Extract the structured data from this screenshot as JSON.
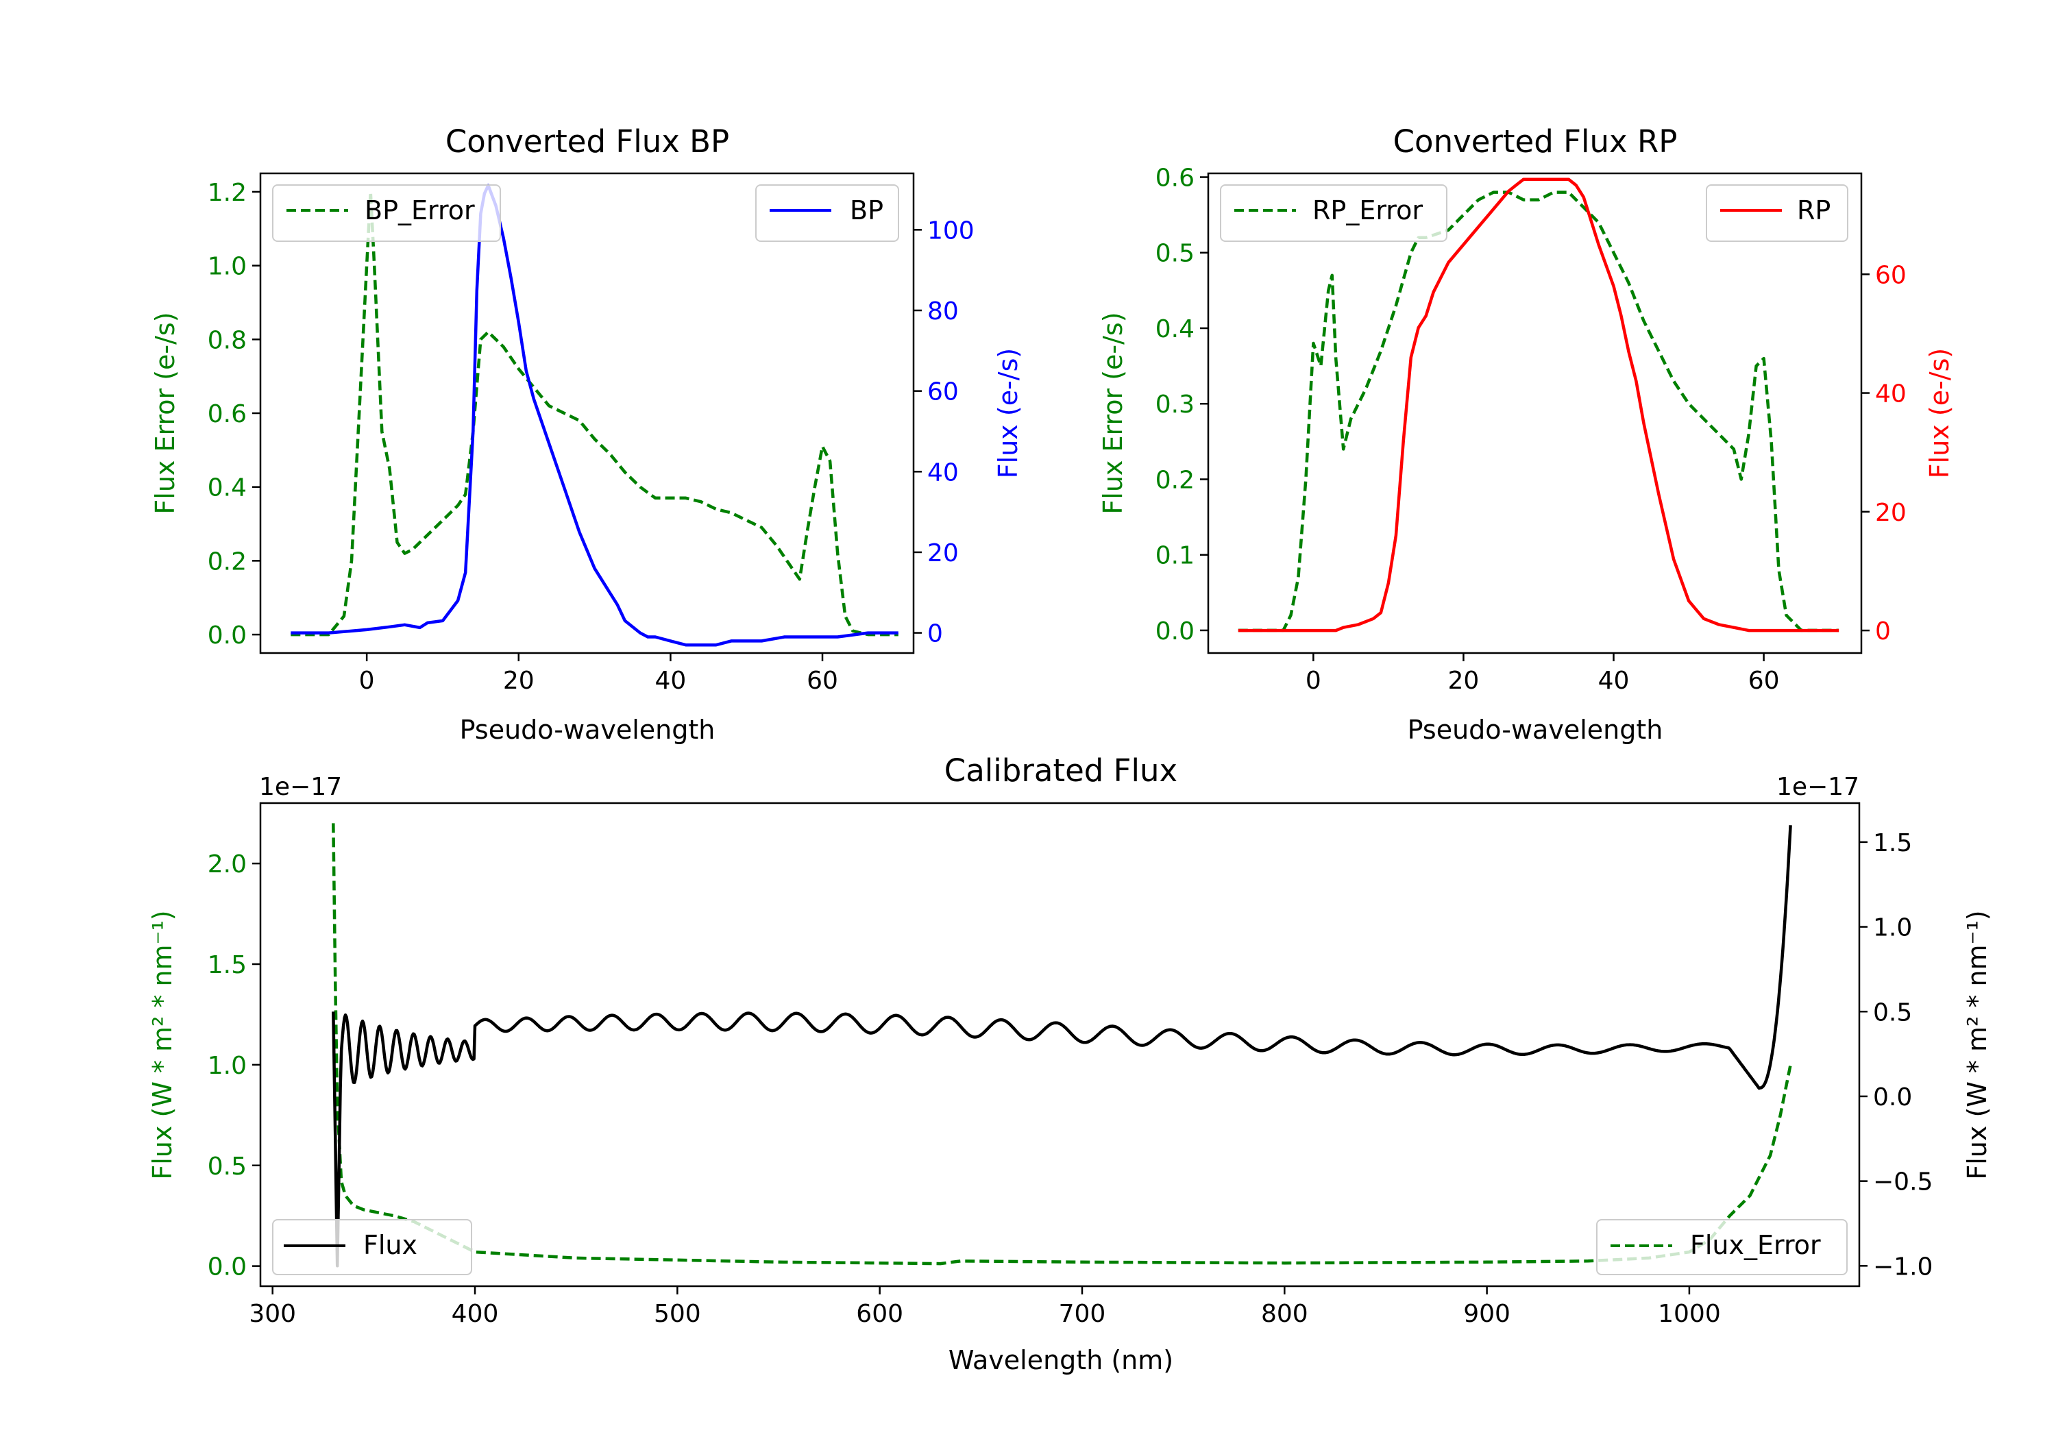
{
  "colors": {
    "error": "#008000",
    "bp": "#0000ff",
    "rp": "#ff0000",
    "flux": "#000000",
    "axis": "#000000"
  },
  "chart_data": [
    {
      "id": "bp",
      "type": "line",
      "title": "Converted Flux BP",
      "xlabel": "Pseudo-wavelength",
      "ylabel_left": "Flux Error (e-/s)",
      "ylabel_right": "Flux (e-/s)",
      "xlim": [
        -14,
        72
      ],
      "ylim_left": [
        -0.05,
        1.25
      ],
      "ylim_right": [
        -5,
        114
      ],
      "xticks": [
        0,
        20,
        40,
        60
      ],
      "yticks_left": [
        0.0,
        0.2,
        0.4,
        0.6,
        0.8,
        1.0,
        1.2
      ],
      "yticks_right": [
        0,
        20,
        40,
        60,
        80,
        100
      ],
      "left_series": {
        "name": "BP_Error",
        "style": "dashed",
        "color": "#008000",
        "x": [
          -10,
          -5,
          -3,
          -2,
          -1,
          0,
          0.5,
          1,
          2,
          3,
          4,
          5,
          6,
          8,
          10,
          12,
          13,
          14,
          15,
          16,
          18,
          20,
          22,
          24,
          26,
          28,
          30,
          32,
          34,
          36,
          38,
          40,
          42,
          44,
          46,
          48,
          50,
          52,
          54,
          56,
          57,
          58,
          59,
          60,
          61,
          62,
          63,
          64,
          66,
          70
        ],
        "y": [
          0,
          0,
          0.05,
          0.2,
          0.6,
          1.0,
          1.2,
          1.0,
          0.55,
          0.45,
          0.25,
          0.22,
          0.23,
          0.27,
          0.31,
          0.35,
          0.38,
          0.55,
          0.8,
          0.82,
          0.78,
          0.72,
          0.67,
          0.62,
          0.6,
          0.58,
          0.53,
          0.49,
          0.44,
          0.4,
          0.37,
          0.37,
          0.37,
          0.36,
          0.34,
          0.33,
          0.31,
          0.29,
          0.24,
          0.18,
          0.15,
          0.28,
          0.4,
          0.51,
          0.47,
          0.22,
          0.05,
          0.01,
          0,
          0
        ]
      },
      "right_series": {
        "name": "BP",
        "style": "solid",
        "color": "#0000ff",
        "x": [
          -10,
          -5,
          0,
          3,
          5,
          7,
          8,
          10,
          12,
          13,
          14,
          14.5,
          15,
          15.5,
          16,
          17,
          18,
          19,
          20,
          21,
          22,
          24,
          26,
          28,
          30,
          32,
          33,
          34,
          36,
          37,
          38,
          40,
          42,
          44,
          46,
          48,
          50,
          52,
          55,
          58,
          62,
          66,
          70
        ],
        "y": [
          0,
          0,
          0.8,
          1.5,
          2,
          1.3,
          2.5,
          3,
          8,
          15,
          50,
          85,
          104,
          109,
          111,
          106,
          98,
          88,
          77,
          65,
          58,
          47,
          36,
          25,
          16,
          10,
          7,
          3,
          0,
          -1,
          -1,
          -2,
          -3,
          -3,
          -3,
          -2,
          -2,
          -2,
          -1,
          -1,
          -1,
          0,
          0
        ]
      },
      "legend_left": {
        "label": "BP_Error",
        "position": "upper left"
      },
      "legend_right": {
        "label": "BP",
        "position": "upper right"
      }
    },
    {
      "id": "rp",
      "type": "line",
      "title": "Converted Flux RP",
      "xlabel": "Pseudo-wavelength",
      "ylabel_left": "Flux Error (e-/s)",
      "ylabel_right": "Flux (e-/s)",
      "xlim": [
        -14,
        73
      ],
      "ylim_left": [
        -0.03,
        0.605
      ],
      "ylim_right": [
        -3.8,
        77
      ],
      "xticks": [
        0,
        20,
        40,
        60
      ],
      "yticks_left": [
        0.0,
        0.1,
        0.2,
        0.3,
        0.4,
        0.5,
        0.6
      ],
      "yticks_right": [
        0,
        20,
        40,
        60
      ],
      "left_series": {
        "name": "RP_Error",
        "style": "dashed",
        "color": "#008000",
        "x": [
          -10,
          -5,
          -4,
          -3,
          -2,
          -1,
          0,
          1,
          2,
          2.5,
          3,
          4,
          5,
          7,
          9,
          11,
          13,
          14,
          15,
          18,
          20,
          22,
          24,
          26,
          28,
          30,
          32,
          34,
          36,
          38,
          40,
          42,
          44,
          46,
          48,
          50,
          52,
          54,
          56,
          57,
          58,
          59,
          60,
          61,
          62,
          63,
          65,
          70
        ],
        "y": [
          0,
          0,
          0,
          0.02,
          0.07,
          0.2,
          0.38,
          0.35,
          0.45,
          0.47,
          0.36,
          0.24,
          0.28,
          0.32,
          0.37,
          0.43,
          0.5,
          0.52,
          0.52,
          0.53,
          0.55,
          0.57,
          0.58,
          0.58,
          0.57,
          0.57,
          0.58,
          0.58,
          0.56,
          0.54,
          0.5,
          0.46,
          0.41,
          0.37,
          0.33,
          0.3,
          0.28,
          0.26,
          0.24,
          0.2,
          0.26,
          0.35,
          0.36,
          0.25,
          0.08,
          0.02,
          0,
          0
        ]
      },
      "right_series": {
        "name": "RP",
        "style": "solid",
        "color": "#ff0000",
        "x": [
          -10,
          0,
          2,
          3,
          4,
          6,
          8,
          9,
          10,
          11,
          12,
          13,
          14,
          15,
          16,
          18,
          20,
          22,
          24,
          26,
          27,
          28,
          30,
          32,
          34,
          35,
          36,
          37,
          38,
          40,
          41,
          42,
          43,
          44,
          46,
          48,
          50,
          52,
          54,
          56,
          58,
          60,
          62,
          66,
          70
        ],
        "y": [
          0,
          0,
          0,
          0,
          0.5,
          1,
          2,
          3,
          8,
          16,
          32,
          46,
          51,
          53,
          57,
          62,
          65,
          68,
          71,
          74,
          75,
          76,
          76,
          76,
          76,
          75,
          73,
          69,
          65,
          58,
          53,
          47,
          42,
          35,
          23,
          12,
          5,
          2,
          1,
          0.5,
          0,
          0,
          0,
          0,
          0
        ]
      },
      "legend_left": {
        "label": "RP_Error",
        "position": "upper left"
      },
      "legend_right": {
        "label": "RP",
        "position": "upper right"
      }
    },
    {
      "id": "cal",
      "type": "line",
      "title": "Calibrated Flux",
      "xlabel": "Wavelength (nm)",
      "ylabel_left": "Flux (W * m² * nm⁻¹)",
      "ylabel_right": "Flux (W * m² * nm⁻¹)",
      "offset_left": "1e−17",
      "offset_right": "1e−17",
      "xlim": [
        294,
        1084
      ],
      "ylim_left": [
        -0.1,
        2.3
      ],
      "ylim_right": [
        -1.12,
        1.73
      ],
      "xticks": [
        300,
        400,
        500,
        600,
        700,
        800,
        900,
        1000
      ],
      "yticks_left": [
        0.0,
        0.5,
        1.0,
        1.5,
        2.0
      ],
      "yticks_right": [
        -1.0,
        -0.5,
        0.0,
        0.5,
        1.0,
        1.5
      ],
      "ytick_labels_right": [
        "−1.0",
        "−0.5",
        "0.0",
        "0.5",
        "1.0",
        "1.5"
      ],
      "left_series": {
        "name": "Flux_Error",
        "style": "dashed",
        "color": "#008000",
        "x": [
          330,
          331,
          332,
          334,
          336,
          340,
          345,
          350,
          355,
          360,
          370,
          380,
          390,
          400,
          450,
          500,
          550,
          600,
          630,
          640,
          700,
          800,
          900,
          950,
          980,
          1000,
          1010,
          1020,
          1030,
          1040,
          1045,
          1050
        ],
        "y": [
          2.2,
          1.4,
          0.8,
          0.42,
          0.35,
          0.3,
          0.28,
          0.27,
          0.26,
          0.25,
          0.22,
          0.17,
          0.12,
          0.07,
          0.04,
          0.03,
          0.02,
          0.015,
          0.012,
          0.025,
          0.02,
          0.015,
          0.02,
          0.025,
          0.04,
          0.07,
          0.13,
          0.25,
          0.35,
          0.55,
          0.75,
          1.0
        ]
      }
    }
  ],
  "cal_flux": {
    "name": "Flux",
    "style": "solid",
    "color": "#000000",
    "note": "oscillating spectrum around ~0.3-0.5 (x1e-17), steep rise near 1050 nm",
    "x_start": 330,
    "x_end": 1050,
    "base_level": 0.38,
    "end_value": 1.6,
    "dip_value": -1.0,
    "peaks_label_left": "Flux",
    "peaks_label_right": "Flux_Error"
  },
  "legends": {
    "cal_left": "Flux",
    "cal_right": "Flux_Error"
  }
}
